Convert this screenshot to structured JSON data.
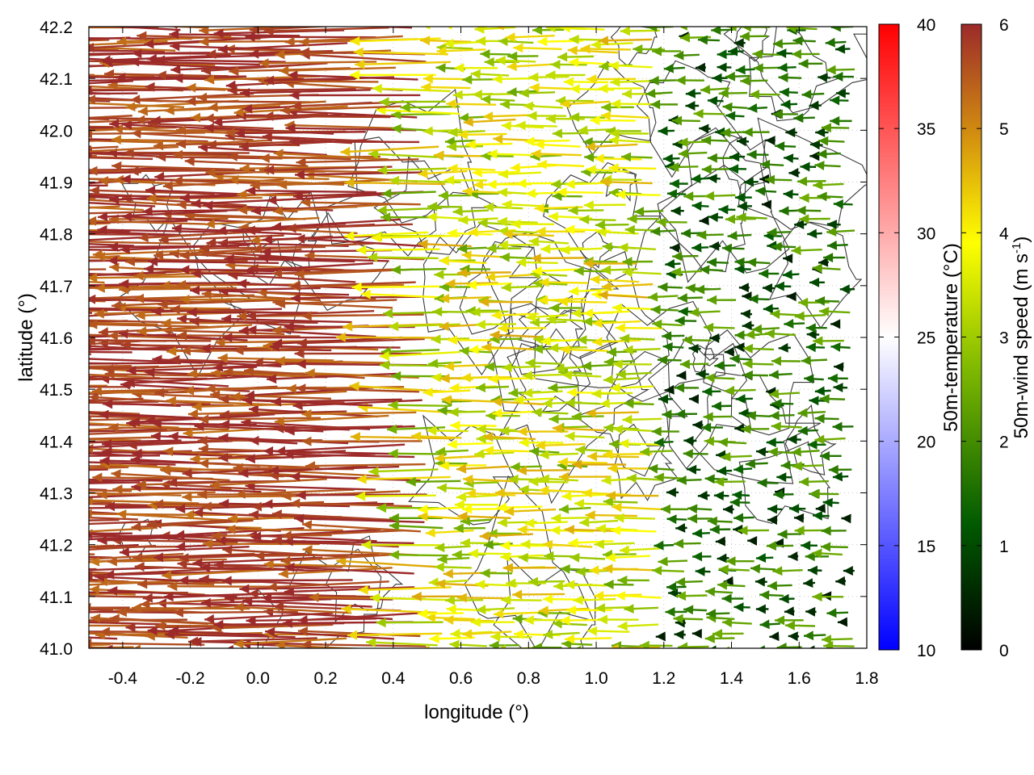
{
  "chart_data": {
    "type": "vector-field",
    "xlabel": "longitude (°)",
    "ylabel": "latitude (°)",
    "xlim": [
      -0.5,
      1.8
    ],
    "ylim": [
      41.0,
      42.2
    ],
    "x_ticks": [
      "-0.4",
      "-0.2",
      "0.0",
      "0.2",
      "0.4",
      "0.6",
      "0.8",
      "1.0",
      "1.2",
      "1.4",
      "1.6",
      "1.8"
    ],
    "y_ticks": [
      "41.0",
      "41.1",
      "41.2",
      "41.3",
      "41.4",
      "41.5",
      "41.6",
      "41.7",
      "41.8",
      "41.9",
      "42.0",
      "42.1",
      "42.2"
    ],
    "grid": true,
    "temperature_colorbar": {
      "label": "50m-temperature (°C)",
      "range": [
        10,
        40
      ],
      "ticks": [
        "10",
        "15",
        "20",
        "25",
        "30",
        "35",
        "40"
      ],
      "colors": [
        "#0000ff",
        "#ffffff",
        "#ff0000"
      ]
    },
    "wind_colorbar": {
      "label_main": "50m-wind speed (m s",
      "label_sup": "-1",
      "label_end": ")",
      "range": [
        0,
        6
      ],
      "ticks": [
        "0",
        "1",
        "2",
        "3",
        "4",
        "5",
        "6"
      ],
      "colors": [
        "#000000",
        "#005a00",
        "#7fb900",
        "#ffff00",
        "#d4900f",
        "#9c2a2a"
      ]
    },
    "wind_field_description_by_region": [
      {
        "lon_range": [
          -0.5,
          0.5
        ],
        "lat_range": [
          41.0,
          42.2
        ],
        "speed_ms": 5.8,
        "direction": "from east (pointing west)"
      },
      {
        "lon_range": [
          0.5,
          1.2
        ],
        "lat_range": [
          41.0,
          42.2
        ],
        "speed_ms": 3.5,
        "direction": "mostly westward"
      },
      {
        "lon_range": [
          1.2,
          1.8
        ],
        "lat_range": [
          41.0,
          42.2
        ],
        "speed_ms": 1.5,
        "direction": "westward, weak"
      }
    ]
  }
}
